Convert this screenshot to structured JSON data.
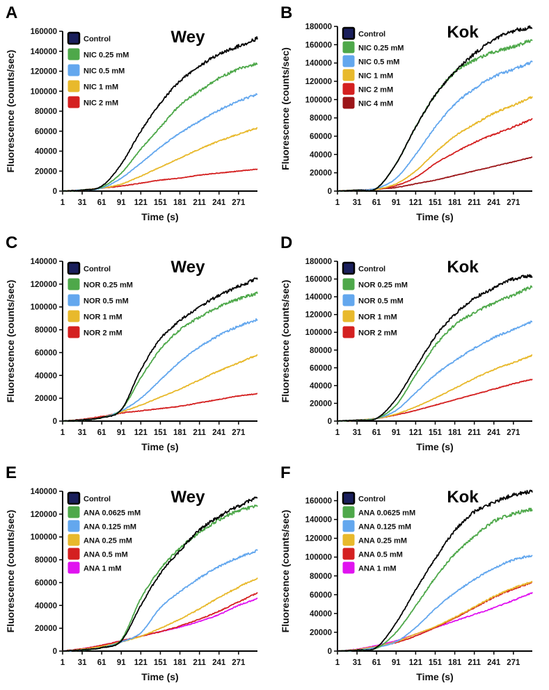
{
  "figure": {
    "colors": {
      "control": "#000000",
      "control_swatch": "#1a1f5c",
      "green": "#4ea84a",
      "blue": "#63a7ee",
      "yellow": "#e8b92c",
      "red": "#d42020",
      "darkred": "#9c1518",
      "magenta": "#e013f0"
    }
  },
  "chart_data": [
    {
      "panel": "A",
      "type": "line",
      "title": "Wey",
      "xlabel": "Time (s)",
      "ylabel": "Fluorescence (counts/sec)",
      "x_ticks": [
        1,
        31,
        61,
        91,
        121,
        151,
        181,
        211,
        241,
        271
      ],
      "y_ticks": [
        0,
        20000,
        40000,
        60000,
        80000,
        100000,
        120000,
        140000,
        160000
      ],
      "xlim": [
        1,
        300
      ],
      "ylim": [
        0,
        160000
      ],
      "grid": false,
      "legend_position": "top-left",
      "x": [
        1,
        31,
        61,
        91,
        121,
        151,
        181,
        211,
        241,
        271,
        300
      ],
      "series": [
        {
          "name": "Control",
          "color_key": "control",
          "values": [
            0,
            1000,
            5000,
            27000,
            60000,
            88000,
            110000,
            125000,
            137000,
            145000,
            153000
          ]
        },
        {
          "name": "NIC 0.25 mM",
          "color_key": "green",
          "values": [
            0,
            1000,
            4000,
            18000,
            42000,
            64000,
            86000,
            100000,
            113000,
            122000,
            128000
          ]
        },
        {
          "name": "NIC 0.5 mM",
          "color_key": "blue",
          "values": [
            0,
            1000,
            3000,
            13000,
            28000,
            44000,
            58000,
            70000,
            81000,
            90000,
            97000
          ]
        },
        {
          "name": "NIC 1 mM",
          "color_key": "yellow",
          "values": [
            0,
            1000,
            3000,
            7000,
            15000,
            24000,
            33000,
            42000,
            50000,
            57000,
            63000
          ]
        },
        {
          "name": "NIC 2 mM",
          "color_key": "red",
          "values": [
            0,
            1000,
            3000,
            5000,
            8000,
            11000,
            13000,
            16000,
            18000,
            20000,
            22000
          ]
        }
      ]
    },
    {
      "panel": "B",
      "type": "line",
      "title": "Kok",
      "xlabel": "Time (s)",
      "ylabel": "Fluorescence (counts/sec)",
      "x_ticks": [
        1,
        31,
        61,
        91,
        121,
        151,
        181,
        211,
        241,
        271
      ],
      "y_ticks": [
        0,
        20000,
        40000,
        60000,
        80000,
        100000,
        120000,
        140000,
        160000,
        180000
      ],
      "xlim": [
        1,
        300
      ],
      "ylim": [
        0,
        180000
      ],
      "grid": false,
      "legend_position": "top-left",
      "x": [
        1,
        31,
        61,
        91,
        121,
        151,
        181,
        211,
        241,
        271,
        300
      ],
      "series": [
        {
          "name": "Control",
          "color_key": "control",
          "values": [
            0,
            1000,
            3000,
            30000,
            70000,
            105000,
            130000,
            150000,
            165000,
            175000,
            179000
          ]
        },
        {
          "name": "NIC 0.25 mM",
          "color_key": "green",
          "values": [
            0,
            1000,
            3000,
            30000,
            70000,
            105000,
            130000,
            143000,
            152000,
            158000,
            165000
          ]
        },
        {
          "name": "NIC 0.5 mM",
          "color_key": "blue",
          "values": [
            0,
            1000,
            3000,
            14000,
            40000,
            70000,
            95000,
            112000,
            125000,
            133000,
            141000
          ]
        },
        {
          "name": "NIC 1 mM",
          "color_key": "yellow",
          "values": [
            0,
            1000,
            2000,
            8000,
            22000,
            42000,
            60000,
            73000,
            85000,
            94000,
            103000
          ]
        },
        {
          "name": "NIC 2 mM",
          "color_key": "red",
          "values": [
            0,
            1000,
            2000,
            6000,
            15000,
            30000,
            42000,
            53000,
            62000,
            70000,
            79000
          ]
        },
        {
          "name": "NIC 4 mM",
          "color_key": "darkred",
          "values": [
            0,
            1000,
            2000,
            4000,
            8000,
            12000,
            17000,
            22000,
            27000,
            32000,
            37000
          ]
        }
      ]
    },
    {
      "panel": "C",
      "type": "line",
      "title": "Wey",
      "xlabel": "Time (s)",
      "ylabel": "Fluorescence (counts/sec)",
      "x_ticks": [
        1,
        31,
        61,
        91,
        121,
        151,
        181,
        211,
        241,
        271
      ],
      "y_ticks": [
        0,
        20000,
        40000,
        60000,
        80000,
        100000,
        120000,
        140000
      ],
      "xlim": [
        1,
        300
      ],
      "ylim": [
        0,
        140000
      ],
      "grid": false,
      "legend_position": "top-left",
      "x": [
        1,
        31,
        61,
        91,
        121,
        151,
        181,
        211,
        241,
        271,
        300
      ],
      "series": [
        {
          "name": "Control",
          "color_key": "control",
          "values": [
            0,
            1000,
            3000,
            10000,
            45000,
            72000,
            88000,
            100000,
            110000,
            118000,
            125000
          ]
        },
        {
          "name": "NOR 0.25 mM",
          "color_key": "green",
          "values": [
            0,
            1000,
            3000,
            10000,
            38000,
            63000,
            80000,
            91000,
            100000,
            107000,
            112000
          ]
        },
        {
          "name": "NOR 0.5 mM",
          "color_key": "blue",
          "values": [
            0,
            1000,
            3000,
            9000,
            20000,
            36000,
            52000,
            65000,
            75000,
            83000,
            89000
          ]
        },
        {
          "name": "NOR 1 mM",
          "color_key": "yellow",
          "values": [
            0,
            1000,
            3000,
            8000,
            14000,
            21000,
            28000,
            36000,
            44000,
            51000,
            58000
          ]
        },
        {
          "name": "NOR 2 mM",
          "color_key": "red",
          "values": [
            0,
            1500,
            4000,
            7000,
            9000,
            11000,
            13000,
            16000,
            19000,
            22000,
            24000
          ]
        }
      ]
    },
    {
      "panel": "D",
      "type": "line",
      "title": "Kok",
      "xlabel": "Time (s)",
      "ylabel": "Fluorescence (counts/sec)",
      "x_ticks": [
        1,
        31,
        61,
        91,
        121,
        151,
        181,
        211,
        241,
        271
      ],
      "y_ticks": [
        0,
        20000,
        40000,
        60000,
        80000,
        100000,
        120000,
        140000,
        160000,
        180000
      ],
      "xlim": [
        1,
        300
      ],
      "ylim": [
        0,
        180000
      ],
      "grid": false,
      "legend_position": "top-left",
      "x": [
        1,
        31,
        61,
        91,
        121,
        151,
        181,
        211,
        241,
        271,
        300
      ],
      "series": [
        {
          "name": "Control",
          "color_key": "control",
          "values": [
            0,
            1000,
            3000,
            25000,
            60000,
            95000,
            120000,
            138000,
            150000,
            160000,
            164000
          ]
        },
        {
          "name": "NOR 0.25 mM",
          "color_key": "green",
          "values": [
            0,
            1000,
            3000,
            18000,
            52000,
            85000,
            108000,
            122000,
            133000,
            142000,
            152000
          ]
        },
        {
          "name": "NOR 0.5 mM",
          "color_key": "blue",
          "values": [
            0,
            1000,
            3000,
            12000,
            32000,
            52000,
            68000,
            82000,
            94000,
            103000,
            112000
          ]
        },
        {
          "name": "NOR 1 mM",
          "color_key": "yellow",
          "values": [
            0,
            1000,
            3000,
            8000,
            16000,
            26000,
            37000,
            48000,
            58000,
            66000,
            74000
          ]
        },
        {
          "name": "NOR 2 mM",
          "color_key": "red",
          "values": [
            0,
            1000,
            3000,
            7000,
            12000,
            18000,
            24000,
            30000,
            36000,
            42000,
            47000
          ]
        }
      ]
    },
    {
      "panel": "E",
      "type": "line",
      "title": "Wey",
      "xlabel": "Time (s)",
      "ylabel": "Fluorescence (counts/sec)",
      "x_ticks": [
        1,
        31,
        61,
        91,
        121,
        151,
        181,
        211,
        241,
        271
      ],
      "y_ticks": [
        0,
        20000,
        40000,
        60000,
        80000,
        100000,
        120000,
        140000
      ],
      "xlim": [
        1,
        300
      ],
      "ylim": [
        0,
        140000
      ],
      "grid": false,
      "legend_position": "top-left",
      "x": [
        1,
        31,
        61,
        91,
        121,
        151,
        181,
        211,
        241,
        271,
        300
      ],
      "series": [
        {
          "name": "Control",
          "color_key": "control",
          "values": [
            0,
            1000,
            3000,
            9000,
            40000,
            68000,
            88000,
            106000,
            118000,
            127000,
            135000
          ]
        },
        {
          "name": "ANA 0.0625 mM",
          "color_key": "green",
          "values": [
            0,
            1000,
            3000,
            10000,
            46000,
            72000,
            90000,
            104000,
            115000,
            123000,
            127000
          ]
        },
        {
          "name": "ANA 0.125 mM",
          "color_key": "blue",
          "values": [
            0,
            1000,
            3000,
            8000,
            16000,
            38000,
            52000,
            64000,
            74000,
            82000,
            88000
          ]
        },
        {
          "name": "ANA 0.25 mM",
          "color_key": "yellow",
          "values": [
            0,
            1500,
            4000,
            8000,
            13000,
            20000,
            28000,
            37000,
            47000,
            56000,
            64000
          ]
        },
        {
          "name": "ANA 0.5 mM",
          "color_key": "red",
          "values": [
            0,
            2000,
            5000,
            9000,
            13000,
            17000,
            22000,
            28000,
            35000,
            43000,
            51000
          ]
        },
        {
          "name": "ANA 1 mM",
          "color_key": "magenta",
          "values": [
            0,
            2000,
            5000,
            9000,
            13000,
            17000,
            21000,
            26000,
            32000,
            40000,
            46000
          ]
        }
      ]
    },
    {
      "panel": "F",
      "type": "line",
      "title": "Kok",
      "xlabel": "Time (s)",
      "ylabel": "Fluorescence (counts/sec)",
      "x_ticks": [
        1,
        31,
        61,
        91,
        121,
        151,
        181,
        211,
        241,
        271
      ],
      "y_ticks": [
        0,
        20000,
        40000,
        60000,
        80000,
        100000,
        120000,
        140000,
        160000
      ],
      "xlim": [
        1,
        300
      ],
      "ylim": [
        0,
        170000
      ],
      "grid": false,
      "legend_position": "top-left",
      "x": [
        1,
        31,
        61,
        91,
        121,
        151,
        181,
        211,
        241,
        271,
        300
      ],
      "series": [
        {
          "name": "Control",
          "color_key": "control",
          "values": [
            0,
            1000,
            4000,
            30000,
            65000,
            98000,
            128000,
            148000,
            158000,
            166000,
            170000
          ]
        },
        {
          "name": "ANA 0.0625 mM",
          "color_key": "green",
          "values": [
            0,
            1000,
            3000,
            20000,
            48000,
            78000,
            103000,
            122000,
            138000,
            146000,
            151000
          ]
        },
        {
          "name": "ANA 0.125 mM",
          "color_key": "blue",
          "values": [
            0,
            1000,
            4000,
            10000,
            25000,
            45000,
            62000,
            76000,
            88000,
            97000,
            102000
          ]
        },
        {
          "name": "ANA 0.25 mM",
          "color_key": "yellow",
          "values": [
            0,
            1500,
            5000,
            10000,
            18000,
            26000,
            36000,
            47000,
            58000,
            67000,
            74000
          ]
        },
        {
          "name": "ANA 0.5 mM",
          "color_key": "red",
          "values": [
            0,
            1500,
            5000,
            9000,
            16000,
            25000,
            35000,
            46000,
            57000,
            66000,
            73000
          ]
        },
        {
          "name": "ANA 1 mM",
          "color_key": "magenta",
          "values": [
            0,
            2000,
            6000,
            11000,
            18000,
            25000,
            32000,
            39000,
            46000,
            54000,
            62000
          ]
        }
      ]
    }
  ]
}
